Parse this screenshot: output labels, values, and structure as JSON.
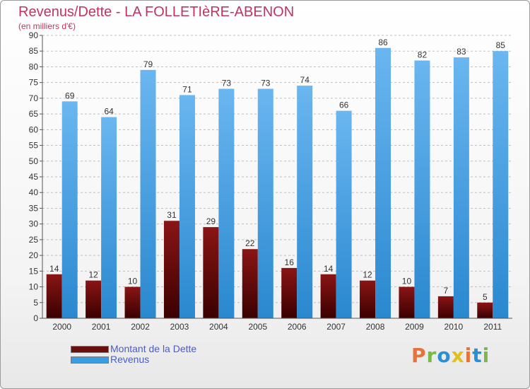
{
  "title": "Revenus/Dette - LA FOLLETIèRE-ABENON",
  "subtitle": "(en milliers d'€)",
  "colors": {
    "title": "#c0355e",
    "axis_text": "#333333",
    "grid": "#bfbfbf",
    "legend_text": "#4a5cc8",
    "dette_top": "#8a1515",
    "dette_bottom": "#3a0000",
    "revenus_top": "#6ab6f0",
    "revenus_bottom": "#2a88cf"
  },
  "brand": {
    "letters": [
      "P",
      "r",
      "o",
      "x",
      "i",
      "t",
      "i"
    ],
    "letter_colors": [
      "#e8733a",
      "#7ab84a",
      "#2b8fd6",
      "#e0c020",
      "#e8733a",
      "#2b8fd6",
      "#7ab84a"
    ]
  },
  "legend": {
    "items": [
      {
        "label": "Montant de la Dette",
        "color": "#6b0e0e"
      },
      {
        "label": "Revenus",
        "color": "#3a9de2"
      }
    ]
  },
  "chart_data": {
    "type": "bar",
    "title": "Revenus/Dette - LA FOLLETIèRE-ABENON",
    "subtitle": "(en milliers d'€)",
    "categories": [
      "2000",
      "2001",
      "2002",
      "2003",
      "2004",
      "2005",
      "2006",
      "2007",
      "2008",
      "2009",
      "2010",
      "2011"
    ],
    "series": [
      {
        "name": "Montant de la Dette",
        "values": [
          14,
          12,
          10,
          31,
          29,
          22,
          16,
          14,
          12,
          10,
          7,
          5
        ]
      },
      {
        "name": "Revenus",
        "values": [
          69,
          64,
          79,
          71,
          73,
          73,
          74,
          66,
          86,
          82,
          83,
          85
        ]
      }
    ],
    "ylim": [
      0,
      90
    ],
    "yticks": [
      0,
      5,
      10,
      15,
      20,
      25,
      30,
      35,
      40,
      45,
      50,
      55,
      60,
      65,
      70,
      75,
      80,
      85,
      90
    ],
    "grid": true,
    "legend_position": "bottom-left"
  }
}
